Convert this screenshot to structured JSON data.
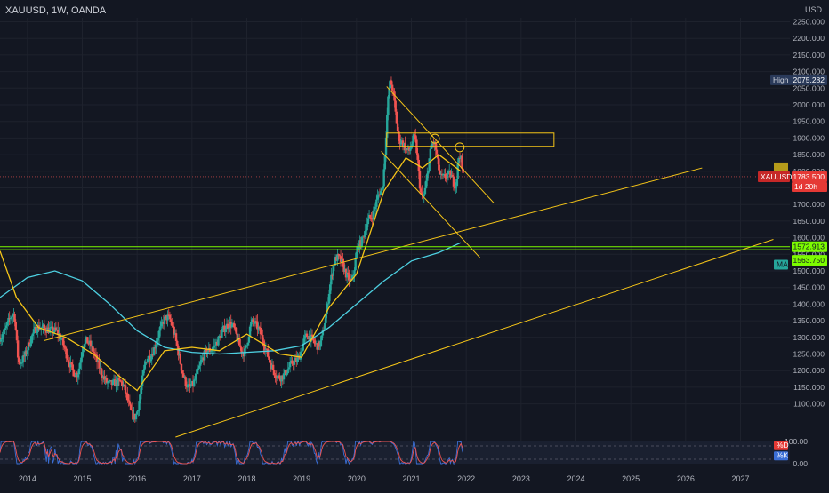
{
  "header": {
    "symbol_line": "XAUUSD, 1W, OANDA",
    "currency": "USD"
  },
  "colors": {
    "background": "#131722",
    "up": "#26a69a",
    "down": "#ef5350",
    "ma_slow": "#4dd0e1",
    "ma_fast": "#f5c518",
    "trendline": "#f5c518",
    "support": "#7cfc00",
    "price_line": "#ef5350",
    "stoch_k": "#3b6fd6",
    "stoch_d": "#ef5350"
  },
  "labels": {
    "high_tag": "High",
    "high_value": "2075.282",
    "price_tag": "XAUUSD",
    "price_value": "1783.500",
    "countdown": "1d 20h",
    "support_upper": "1572.913",
    "support_lower": "1563.750",
    "ma_tag": "MA",
    "stoch_k_tag": "%D",
    "stoch_d_tag": "%K"
  },
  "chart_data": {
    "type": "candlestick",
    "title": "",
    "xlabel": "",
    "ylabel": "USD",
    "ylim": [
      1000,
      2262
    ],
    "y_ticks": [
      1100,
      1150,
      1200,
      1250,
      1300,
      1350,
      1400,
      1450,
      1500,
      1550,
      1600,
      1650,
      1700,
      1750,
      1800,
      1850,
      1900,
      1950,
      2000,
      2050,
      2100,
      2150,
      2200,
      2250
    ],
    "x_ticks": [
      "2014",
      "2015",
      "2016",
      "2017",
      "2018",
      "2019",
      "2020",
      "2021",
      "2022",
      "2023",
      "2024",
      "2025",
      "2026",
      "2027"
    ],
    "x_range": [
      2013.5,
      2027.9
    ],
    "price_anchors": [
      {
        "t": 2013.5,
        "p": 1300
      },
      {
        "t": 2013.75,
        "p": 1370
      },
      {
        "t": 2013.85,
        "p": 1225
      },
      {
        "t": 2014.2,
        "p": 1330
      },
      {
        "t": 2014.5,
        "p": 1320
      },
      {
        "t": 2014.9,
        "p": 1190
      },
      {
        "t": 2015.05,
        "p": 1290
      },
      {
        "t": 2015.5,
        "p": 1160
      },
      {
        "t": 2015.7,
        "p": 1165
      },
      {
        "t": 2015.95,
        "p": 1060
      },
      {
        "t": 2016.2,
        "p": 1240
      },
      {
        "t": 2016.55,
        "p": 1360
      },
      {
        "t": 2016.95,
        "p": 1150
      },
      {
        "t": 2017.3,
        "p": 1260
      },
      {
        "t": 2017.7,
        "p": 1340
      },
      {
        "t": 2017.95,
        "p": 1255
      },
      {
        "t": 2018.1,
        "p": 1345
      },
      {
        "t": 2018.6,
        "p": 1180
      },
      {
        "t": 2018.9,
        "p": 1230
      },
      {
        "t": 2019.1,
        "p": 1305
      },
      {
        "t": 2019.3,
        "p": 1275
      },
      {
        "t": 2019.65,
        "p": 1540
      },
      {
        "t": 2019.9,
        "p": 1470
      },
      {
        "t": 2020.05,
        "p": 1580
      },
      {
        "t": 2020.25,
        "p": 1660
      },
      {
        "t": 2020.45,
        "p": 1740
      },
      {
        "t": 2020.62,
        "p": 2065
      },
      {
        "t": 2020.8,
        "p": 1890
      },
      {
        "t": 2020.95,
        "p": 1860
      },
      {
        "t": 2021.05,
        "p": 1900
      },
      {
        "t": 2021.2,
        "p": 1720
      },
      {
        "t": 2021.4,
        "p": 1885
      },
      {
        "t": 2021.55,
        "p": 1780
      },
      {
        "t": 2021.7,
        "p": 1790
      },
      {
        "t": 2021.8,
        "p": 1760
      },
      {
        "t": 2021.88,
        "p": 1850
      },
      {
        "t": 2021.95,
        "p": 1785
      }
    ],
    "series": [
      {
        "name": "",
        "kind": "moving_average_slow",
        "points": [
          [
            2013.5,
            1420
          ],
          [
            2014.0,
            1480
          ],
          [
            2014.5,
            1500
          ],
          [
            2015.0,
            1470
          ],
          [
            2015.5,
            1400
          ],
          [
            2016.0,
            1320
          ],
          [
            2016.5,
            1270
          ],
          [
            2017.0,
            1255
          ],
          [
            2017.5,
            1250
          ],
          [
            2018.0,
            1255
          ],
          [
            2018.5,
            1260
          ],
          [
            2019.0,
            1275
          ],
          [
            2019.5,
            1330
          ],
          [
            2020.0,
            1400
          ],
          [
            2020.5,
            1470
          ],
          [
            2021.0,
            1530
          ],
          [
            2021.5,
            1555
          ],
          [
            2021.9,
            1585
          ]
        ]
      },
      {
        "name": "",
        "kind": "moving_average_fast",
        "points": [
          [
            2013.5,
            1560
          ],
          [
            2013.8,
            1420
          ],
          [
            2014.2,
            1330
          ],
          [
            2014.7,
            1300
          ],
          [
            2015.2,
            1250
          ],
          [
            2015.7,
            1180
          ],
          [
            2016.0,
            1140
          ],
          [
            2016.5,
            1260
          ],
          [
            2017.0,
            1270
          ],
          [
            2017.5,
            1260
          ],
          [
            2018.0,
            1310
          ],
          [
            2018.6,
            1250
          ],
          [
            2019.0,
            1240
          ],
          [
            2019.5,
            1390
          ],
          [
            2020.0,
            1490
          ],
          [
            2020.5,
            1740
          ],
          [
            2020.9,
            1840
          ],
          [
            2021.2,
            1810
          ],
          [
            2021.5,
            1850
          ],
          [
            2021.9,
            1800
          ]
        ]
      }
    ],
    "drawings": {
      "channel_upper": {
        "from": [
          2014.3,
          1290
        ],
        "to": [
          2026.3,
          1810
        ]
      },
      "channel_lower": {
        "from": [
          2016.7,
          1000
        ],
        "to": [
          2027.6,
          1595
        ]
      },
      "wedge_line_1": {
        "from": [
          2020.55,
          2055
        ],
        "to": [
          2022.5,
          1705
        ]
      },
      "wedge_line_2": {
        "from": [
          2020.45,
          1860
        ],
        "to": [
          2022.25,
          1540
        ]
      },
      "resistance_box": {
        "t0": 2020.55,
        "t1": 2023.6,
        "p0": 1875,
        "p1": 1915
      },
      "support_zone": [
        1563.75,
        1572.913
      ],
      "current_price": 1783.5,
      "circles": [
        {
          "t": 2021.43,
          "p": 1898
        },
        {
          "t": 2021.88,
          "p": 1872
        }
      ]
    },
    "oscillator": {
      "name": "Stochastic",
      "ylim": [
        0,
        100
      ],
      "ticks": [
        0,
        100
      ],
      "levels": [
        20,
        80
      ]
    }
  }
}
